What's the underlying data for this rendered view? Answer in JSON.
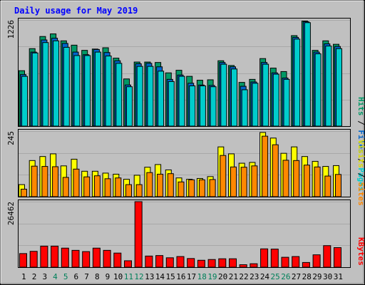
{
  "chart_data": [
    {
      "type": "bar",
      "title": "Daily usage for May 2019",
      "ymax_label": "1226",
      "ymax": 1226,
      "legend": [
        {
          "name": "Pages",
          "color": "#00cccc"
        },
        {
          "name": "Files",
          "color": "#0066cc"
        },
        {
          "name": "Hits",
          "color": "#009966"
        }
      ],
      "categories": [
        "1",
        "2",
        "3",
        "4",
        "5",
        "6",
        "7",
        "8",
        "9",
        "10",
        "11",
        "12",
        "13",
        "14",
        "15",
        "16",
        "17",
        "18",
        "19",
        "20",
        "21",
        "22",
        "23",
        "24",
        "25",
        "26",
        "27",
        "28",
        "29",
        "30",
        "31"
      ],
      "weekend_days": [
        "4",
        "5",
        "11",
        "12",
        "18",
        "19",
        "25",
        "26"
      ],
      "series": [
        {
          "name": "Hits",
          "values": [
            640,
            895,
            1035,
            1065,
            985,
            935,
            875,
            890,
            905,
            785,
            545,
            740,
            740,
            735,
            615,
            645,
            575,
            530,
            535,
            755,
            700,
            505,
            540,
            780,
            670,
            630,
            1045,
            1213,
            875,
            985,
            945
          ]
        },
        {
          "name": "Files",
          "values": [
            595,
            855,
            995,
            1015,
            955,
            855,
            825,
            885,
            850,
            755,
            475,
            720,
            725,
            685,
            540,
            590,
            495,
            475,
            470,
            735,
            685,
            460,
            510,
            735,
            615,
            555,
            1025,
            1205,
            855,
            950,
            920
          ]
        },
        {
          "name": "Pages",
          "values": [
            575,
            845,
            965,
            985,
            910,
            815,
            815,
            855,
            810,
            725,
            455,
            690,
            690,
            635,
            515,
            575,
            465,
            465,
            455,
            715,
            660,
            420,
            495,
            715,
            600,
            540,
            1005,
            1195,
            835,
            925,
            895
          ]
        }
      ]
    },
    {
      "type": "bar",
      "ymax_label": "245",
      "ymax": 245,
      "legend": [
        {
          "name": "Sites",
          "color": "#ff8800"
        },
        {
          "name": "Visits",
          "color": "#ffff00"
        }
      ],
      "categories": [
        "1",
        "2",
        "3",
        "4",
        "5",
        "6",
        "7",
        "8",
        "9",
        "10",
        "11",
        "12",
        "13",
        "14",
        "15",
        "16",
        "17",
        "18",
        "19",
        "20",
        "21",
        "22",
        "23",
        "24",
        "25",
        "26",
        "27",
        "28",
        "29",
        "30",
        "31"
      ],
      "series": [
        {
          "name": "Visits",
          "values": [
            45,
            135,
            150,
            160,
            115,
            140,
            95,
            95,
            88,
            84,
            65,
            80,
            110,
            120,
            100,
            70,
            65,
            68,
            75,
            186,
            160,
            125,
            128,
            240,
            219,
            162,
            186,
            150,
            132,
            113,
            116
          ]
        },
        {
          "name": "Sites",
          "values": [
            28,
            114,
            113,
            112,
            72,
            103,
            74,
            78,
            67,
            70,
            45,
            45,
            90,
            84,
            86,
            55,
            63,
            63,
            64,
            154,
            111,
            110,
            115,
            226,
            194,
            136,
            135,
            118,
            111,
            77,
            83
          ]
        }
      ]
    },
    {
      "type": "bar",
      "ymax_label": "26462",
      "ymax": 26462,
      "legend": [
        {
          "name": "KBytes",
          "color": "#ff0000"
        }
      ],
      "categories": [
        "1",
        "2",
        "3",
        "4",
        "5",
        "6",
        "7",
        "8",
        "9",
        "10",
        "11",
        "12",
        "13",
        "14",
        "15",
        "16",
        "17",
        "18",
        "19",
        "20",
        "21",
        "22",
        "23",
        "24",
        "25",
        "26",
        "27",
        "28",
        "29",
        "30",
        "31"
      ],
      "series": [
        {
          "name": "KBytes",
          "values": [
            5500,
            6400,
            8500,
            8500,
            7700,
            6800,
            6300,
            7700,
            6800,
            5700,
            2600,
            26462,
            4500,
            4700,
            3800,
            4300,
            3500,
            2800,
            3100,
            3400,
            3400,
            1000,
            1400,
            7400,
            7300,
            4000,
            4300,
            1900,
            5000,
            8700,
            7900
          ]
        }
      ]
    }
  ]
}
